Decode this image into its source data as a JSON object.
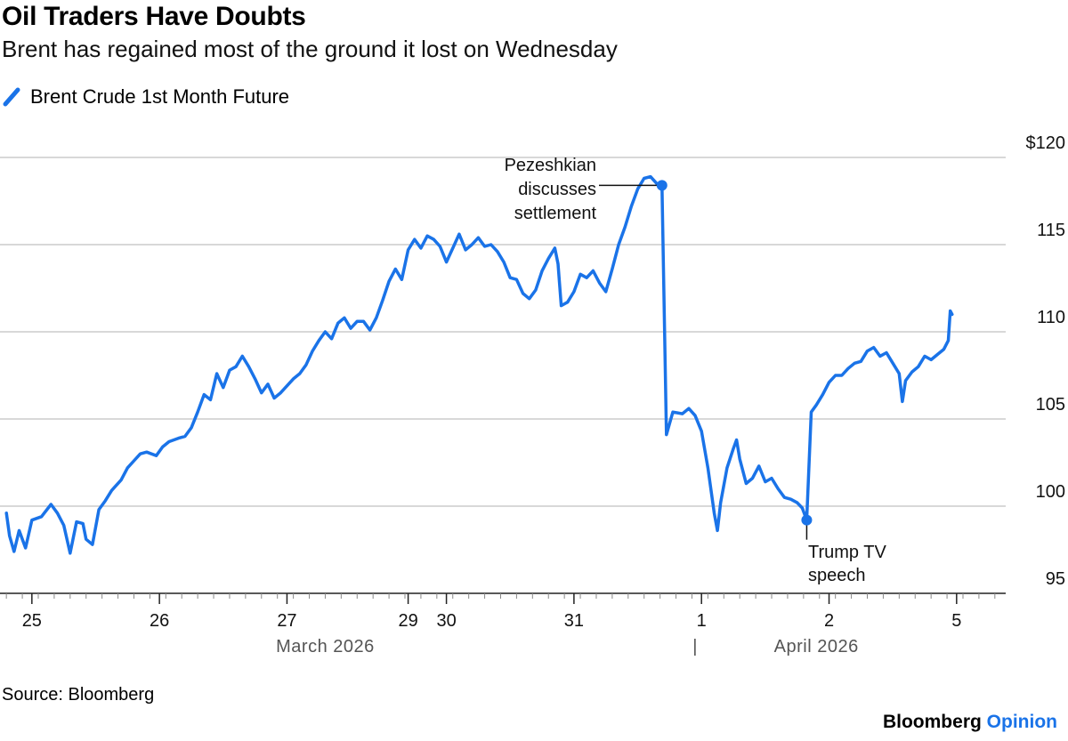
{
  "title": "Oil Traders Have Doubts",
  "subtitle": "Brent has regained most of the ground it lost on Wednesday",
  "source": "Source: Bloomberg",
  "brand": {
    "name": "Bloomberg",
    "section": "Opinion"
  },
  "colors": {
    "series": "#1a73e8",
    "grid": "#cccccc",
    "axis": "#222222",
    "brand_accent": "#1a73e8"
  },
  "chart_data": {
    "type": "line",
    "title": "Oil Traders Have Doubts",
    "legend": [
      "Brent Crude 1st Month Future"
    ],
    "y_axis": {
      "side": "right",
      "ylim": [
        95,
        120
      ],
      "ticks": [
        {
          "value": 120,
          "label": "$120"
        },
        {
          "value": 115,
          "label": "115"
        },
        {
          "value": 110,
          "label": "110"
        },
        {
          "value": 105,
          "label": "105"
        },
        {
          "value": 100,
          "label": "100"
        },
        {
          "value": 95,
          "label": "95"
        }
      ]
    },
    "x_axis": {
      "xlim": [
        0,
        15.77
      ],
      "day_ticks": [
        {
          "t": 0.5,
          "label": "25"
        },
        {
          "t": 2.5,
          "label": "26"
        },
        {
          "t": 4.5,
          "label": "27"
        },
        {
          "t": 6.4,
          "label": "29"
        },
        {
          "t": 7.0,
          "label": "30"
        },
        {
          "t": 9.0,
          "label": "31"
        },
        {
          "t": 11.0,
          "label": "1"
        },
        {
          "t": 13.0,
          "label": "2"
        },
        {
          "t": 15.0,
          "label": "5"
        }
      ],
      "month_labels": [
        {
          "t": 5.1,
          "label": "March 2026"
        },
        {
          "t": 12.8,
          "label": "April 2026"
        }
      ],
      "month_separator": {
        "t": 10.9,
        "label": "|"
      }
    },
    "series": [
      {
        "name": "Brent Crude 1st Month Future",
        "points": [
          [
            0.1,
            99.6
          ],
          [
            0.15,
            98.3
          ],
          [
            0.22,
            97.4
          ],
          [
            0.3,
            98.6
          ],
          [
            0.4,
            97.6
          ],
          [
            0.5,
            99.2
          ],
          [
            0.65,
            99.4
          ],
          [
            0.8,
            100.1
          ],
          [
            0.9,
            99.6
          ],
          [
            1.0,
            98.9
          ],
          [
            1.1,
            97.3
          ],
          [
            1.2,
            99.1
          ],
          [
            1.3,
            99.0
          ],
          [
            1.35,
            98.1
          ],
          [
            1.45,
            97.8
          ],
          [
            1.55,
            99.8
          ],
          [
            1.65,
            100.3
          ],
          [
            1.75,
            100.9
          ],
          [
            1.9,
            101.5
          ],
          [
            2.0,
            102.2
          ],
          [
            2.1,
            102.6
          ],
          [
            2.2,
            103.0
          ],
          [
            2.3,
            103.1
          ],
          [
            2.45,
            102.9
          ],
          [
            2.55,
            103.4
          ],
          [
            2.65,
            103.7
          ],
          [
            2.8,
            103.9
          ],
          [
            2.9,
            104.0
          ],
          [
            3.0,
            104.5
          ],
          [
            3.1,
            105.4
          ],
          [
            3.2,
            106.4
          ],
          [
            3.3,
            106.1
          ],
          [
            3.4,
            107.6
          ],
          [
            3.5,
            106.8
          ],
          [
            3.6,
            107.8
          ],
          [
            3.7,
            108.0
          ],
          [
            3.8,
            108.6
          ],
          [
            3.9,
            108.0
          ],
          [
            4.0,
            107.3
          ],
          [
            4.1,
            106.5
          ],
          [
            4.2,
            107.0
          ],
          [
            4.3,
            106.2
          ],
          [
            4.4,
            106.5
          ],
          [
            4.5,
            106.9
          ],
          [
            4.6,
            107.3
          ],
          [
            4.7,
            107.6
          ],
          [
            4.8,
            108.1
          ],
          [
            4.9,
            108.9
          ],
          [
            5.0,
            109.5
          ],
          [
            5.1,
            110.0
          ],
          [
            5.2,
            109.6
          ],
          [
            5.3,
            110.5
          ],
          [
            5.4,
            110.8
          ],
          [
            5.5,
            110.2
          ],
          [
            5.6,
            110.6
          ],
          [
            5.7,
            110.6
          ],
          [
            5.8,
            110.1
          ],
          [
            5.9,
            110.8
          ],
          [
            6.0,
            111.8
          ],
          [
            6.1,
            112.9
          ],
          [
            6.2,
            113.6
          ],
          [
            6.3,
            113.0
          ],
          [
            6.4,
            114.7
          ],
          [
            6.5,
            115.3
          ],
          [
            6.6,
            114.8
          ],
          [
            6.7,
            115.5
          ],
          [
            6.8,
            115.3
          ],
          [
            6.9,
            114.9
          ],
          [
            7.0,
            114.0
          ],
          [
            7.1,
            114.8
          ],
          [
            7.2,
            115.6
          ],
          [
            7.3,
            114.7
          ],
          [
            7.4,
            115.0
          ],
          [
            7.5,
            115.4
          ],
          [
            7.6,
            114.9
          ],
          [
            7.7,
            115.0
          ],
          [
            7.8,
            114.6
          ],
          [
            7.9,
            114.0
          ],
          [
            8.0,
            113.1
          ],
          [
            8.1,
            113.0
          ],
          [
            8.2,
            112.2
          ],
          [
            8.3,
            111.9
          ],
          [
            8.4,
            112.4
          ],
          [
            8.5,
            113.5
          ],
          [
            8.6,
            114.2
          ],
          [
            8.7,
            114.8
          ],
          [
            8.75,
            113.9
          ],
          [
            8.8,
            111.5
          ],
          [
            8.9,
            111.7
          ],
          [
            9.0,
            112.3
          ],
          [
            9.1,
            113.3
          ],
          [
            9.2,
            113.1
          ],
          [
            9.3,
            113.5
          ],
          [
            9.4,
            112.8
          ],
          [
            9.5,
            112.3
          ],
          [
            9.6,
            113.6
          ],
          [
            9.7,
            115.0
          ],
          [
            9.8,
            116.0
          ],
          [
            9.9,
            117.2
          ],
          [
            10.0,
            118.2
          ],
          [
            10.1,
            118.8
          ],
          [
            10.2,
            118.9
          ],
          [
            10.3,
            118.5
          ],
          [
            10.38,
            118.4
          ],
          [
            10.45,
            104.1
          ],
          [
            10.55,
            105.4
          ],
          [
            10.7,
            105.3
          ],
          [
            10.8,
            105.6
          ],
          [
            10.9,
            105.2
          ],
          [
            11.0,
            104.3
          ],
          [
            11.1,
            102.2
          ],
          [
            11.2,
            99.6
          ],
          [
            11.25,
            98.6
          ],
          [
            11.3,
            100.2
          ],
          [
            11.4,
            102.2
          ],
          [
            11.5,
            103.3
          ],
          [
            11.55,
            103.8
          ],
          [
            11.6,
            102.7
          ],
          [
            11.7,
            101.3
          ],
          [
            11.8,
            101.6
          ],
          [
            11.9,
            102.3
          ],
          [
            12.0,
            101.4
          ],
          [
            12.1,
            101.6
          ],
          [
            12.2,
            101.0
          ],
          [
            12.3,
            100.5
          ],
          [
            12.4,
            100.4
          ],
          [
            12.5,
            100.2
          ],
          [
            12.58,
            99.9
          ],
          [
            12.65,
            99.2
          ],
          [
            12.72,
            105.4
          ],
          [
            12.8,
            105.8
          ],
          [
            12.9,
            106.4
          ],
          [
            13.0,
            107.1
          ],
          [
            13.1,
            107.5
          ],
          [
            13.2,
            107.5
          ],
          [
            13.3,
            107.9
          ],
          [
            13.4,
            108.2
          ],
          [
            13.5,
            108.3
          ],
          [
            13.6,
            108.9
          ],
          [
            13.7,
            109.1
          ],
          [
            13.8,
            108.6
          ],
          [
            13.9,
            108.8
          ],
          [
            14.0,
            108.2
          ],
          [
            14.1,
            107.6
          ],
          [
            14.15,
            106.0
          ],
          [
            14.2,
            107.2
          ],
          [
            14.3,
            107.7
          ],
          [
            14.4,
            108.0
          ],
          [
            14.5,
            108.6
          ],
          [
            14.6,
            108.4
          ],
          [
            14.7,
            108.7
          ],
          [
            14.8,
            109.0
          ],
          [
            14.87,
            109.5
          ],
          [
            14.9,
            111.2
          ],
          [
            14.93,
            111.0
          ]
        ]
      }
    ],
    "annotations": [
      {
        "text_lines": [
          "Pezeshkian",
          "discusses",
          "settlement"
        ],
        "x": 10.38,
        "y": 118.4
      },
      {
        "text_lines": [
          "Trump TV",
          "speech"
        ],
        "x": 12.65,
        "y": 99.2
      }
    ]
  }
}
